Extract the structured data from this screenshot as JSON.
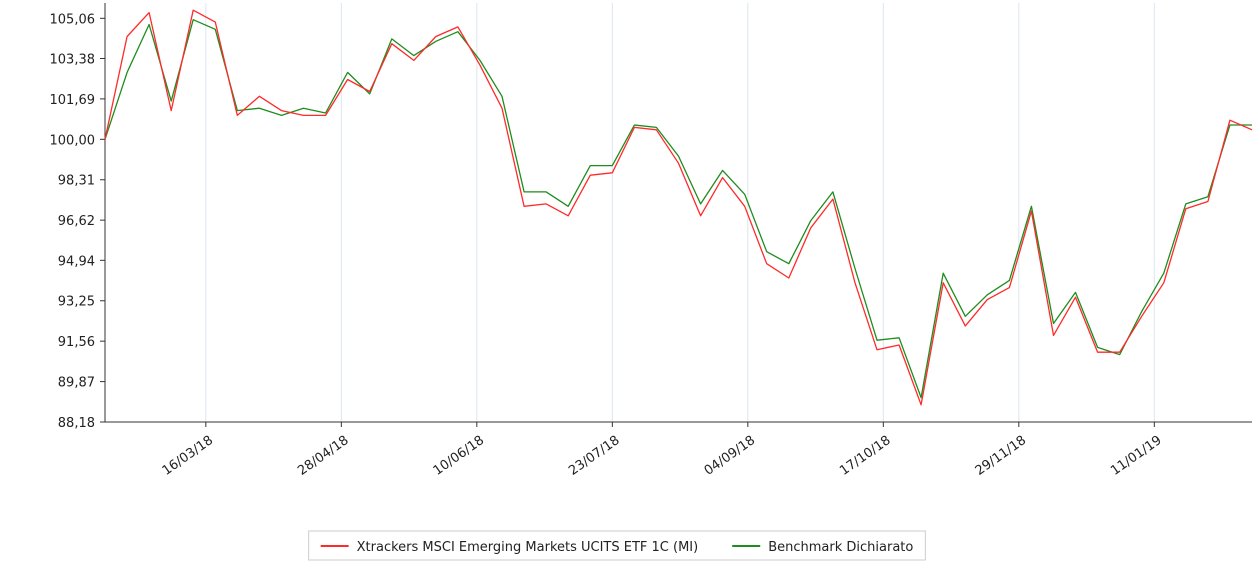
{
  "chart_data": {
    "type": "line",
    "x": [
      "12/02/18",
      "19/02/18",
      "26/02/18",
      "05/03/18",
      "12/03/18",
      "19/03/18",
      "26/03/18",
      "02/04/18",
      "09/04/18",
      "16/04/18",
      "23/04/18",
      "30/04/18",
      "07/05/18",
      "14/05/18",
      "21/05/18",
      "28/05/18",
      "04/06/18",
      "11/06/18",
      "18/06/18",
      "25/06/18",
      "02/07/18",
      "09/07/18",
      "16/07/18",
      "23/07/18",
      "30/07/18",
      "06/08/18",
      "13/08/18",
      "20/08/18",
      "27/08/18",
      "03/09/18",
      "10/09/18",
      "17/09/18",
      "24/09/18",
      "01/10/18",
      "08/10/18",
      "15/10/18",
      "22/10/18",
      "29/10/18",
      "05/11/18",
      "12/11/18",
      "19/11/18",
      "26/11/18",
      "03/12/18",
      "10/12/18",
      "17/12/18",
      "24/12/18",
      "31/12/18",
      "07/01/19",
      "14/01/19",
      "21/01/19",
      "28/01/19",
      "04/02/19",
      "11/02/19"
    ],
    "series": [
      {
        "name": "Xtrackers MSCI Emerging Markets UCITS ETF 1C (MI)",
        "color": "#ff2a2a",
        "values": [
          100.0,
          104.3,
          105.3,
          101.2,
          105.4,
          104.9,
          101.0,
          101.8,
          101.2,
          101.0,
          101.0,
          102.5,
          102.0,
          104.0,
          103.3,
          104.3,
          104.7,
          103.1,
          101.3,
          97.2,
          97.3,
          96.8,
          98.5,
          98.6,
          100.5,
          100.4,
          99.0,
          96.8,
          98.4,
          97.2,
          94.8,
          94.2,
          96.3,
          97.5,
          94.0,
          91.2,
          91.4,
          88.9,
          94.0,
          92.2,
          93.3,
          93.8,
          97.0,
          91.8,
          93.4,
          91.1,
          91.1,
          92.6,
          94.0,
          97.1,
          97.4,
          100.8,
          100.4
        ]
      },
      {
        "name": "Benchmark Dichiarato",
        "color": "#1e8c1e",
        "values": [
          100.0,
          102.8,
          104.8,
          101.6,
          105.0,
          104.6,
          101.2,
          101.3,
          101.0,
          101.3,
          101.1,
          102.8,
          101.9,
          104.2,
          103.5,
          104.1,
          104.5,
          103.3,
          101.8,
          97.8,
          97.8,
          97.2,
          98.9,
          98.9,
          100.6,
          100.5,
          99.3,
          97.3,
          98.7,
          97.7,
          95.3,
          94.8,
          96.6,
          97.8,
          94.6,
          91.6,
          91.7,
          89.2,
          94.4,
          92.6,
          93.5,
          94.1,
          97.2,
          92.3,
          93.6,
          91.3,
          91.0,
          92.8,
          94.4,
          97.3,
          97.6,
          100.6,
          100.6
        ]
      }
    ],
    "xlim": [
      "12/02/18",
      "11/02/19"
    ],
    "xticks": [
      "16/03/18",
      "28/04/18",
      "10/06/18",
      "23/07/18",
      "04/09/18",
      "17/10/18",
      "29/11/18",
      "11/01/19"
    ],
    "ylim": [
      88.18,
      105.7
    ],
    "yticks": [
      {
        "value": 88.18,
        "label": "88,18"
      },
      {
        "value": 89.87,
        "label": "89,87"
      },
      {
        "value": 91.56,
        "label": "91,56"
      },
      {
        "value": 93.25,
        "label": "93,25"
      },
      {
        "value": 94.94,
        "label": "94,94"
      },
      {
        "value": 96.62,
        "label": "96,62"
      },
      {
        "value": 98.31,
        "label": "98,31"
      },
      {
        "value": 100.0,
        "label": "100,00"
      },
      {
        "value": 101.69,
        "label": "101,69"
      },
      {
        "value": 103.38,
        "label": "103,38"
      },
      {
        "value": 105.06,
        "label": "105,06"
      }
    ],
    "grid": "x",
    "legend": "bottom"
  }
}
